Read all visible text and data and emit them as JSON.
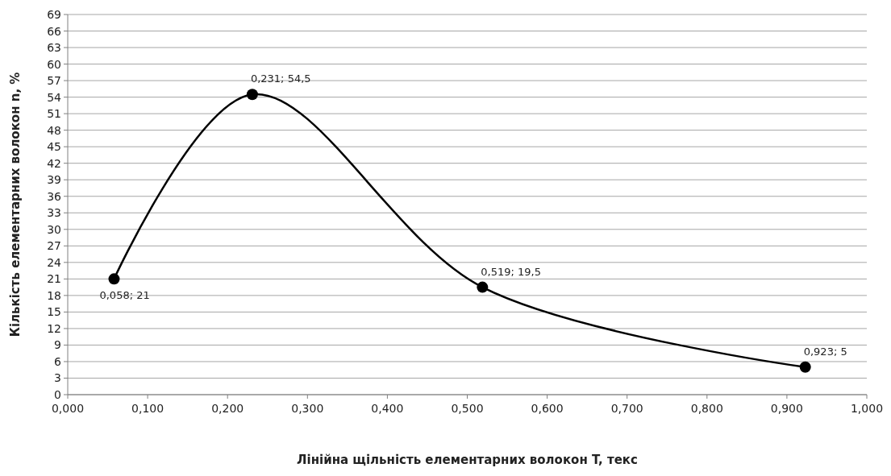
{
  "chart_data": {
    "type": "line",
    "xlabel": "Лінійна щільність елементарних волокон T, текс",
    "ylabel": "Кількість елементарних волокон n, %",
    "x": [
      0.058,
      0.231,
      0.519,
      0.923
    ],
    "series": [
      {
        "color": "#000000",
        "values": [
          21,
          54.5,
          19.5,
          5
        ],
        "value_labels": [
          "0,058; 21",
          "0,231; 54,5",
          "0,519; 19,5",
          "0,923; 5"
        ]
      }
    ],
    "xlim": [
      0,
      1
    ],
    "ylim": [
      0,
      69
    ],
    "xticks": [
      {
        "value": 0,
        "label": "0,000"
      },
      {
        "value": 0.1,
        "label": "0,100"
      },
      {
        "value": 0.2,
        "label": "0,200"
      },
      {
        "value": 0.3,
        "label": "0,300"
      },
      {
        "value": 0.4,
        "label": "0,400"
      },
      {
        "value": 0.5,
        "label": "0,500"
      },
      {
        "value": 0.6,
        "label": "0,600"
      },
      {
        "value": 0.7,
        "label": "0,700"
      },
      {
        "value": 0.8,
        "label": "0,800"
      },
      {
        "value": 0.9,
        "label": "0,900"
      },
      {
        "value": 1,
        "label": "1,000"
      }
    ],
    "yticks": [
      0,
      3,
      6,
      9,
      12,
      15,
      18,
      21,
      24,
      27,
      30,
      33,
      36,
      39,
      42,
      45,
      48,
      51,
      54,
      57,
      60,
      63,
      66,
      69
    ],
    "grid": "y",
    "marker": "circle",
    "line_style": "solid"
  }
}
